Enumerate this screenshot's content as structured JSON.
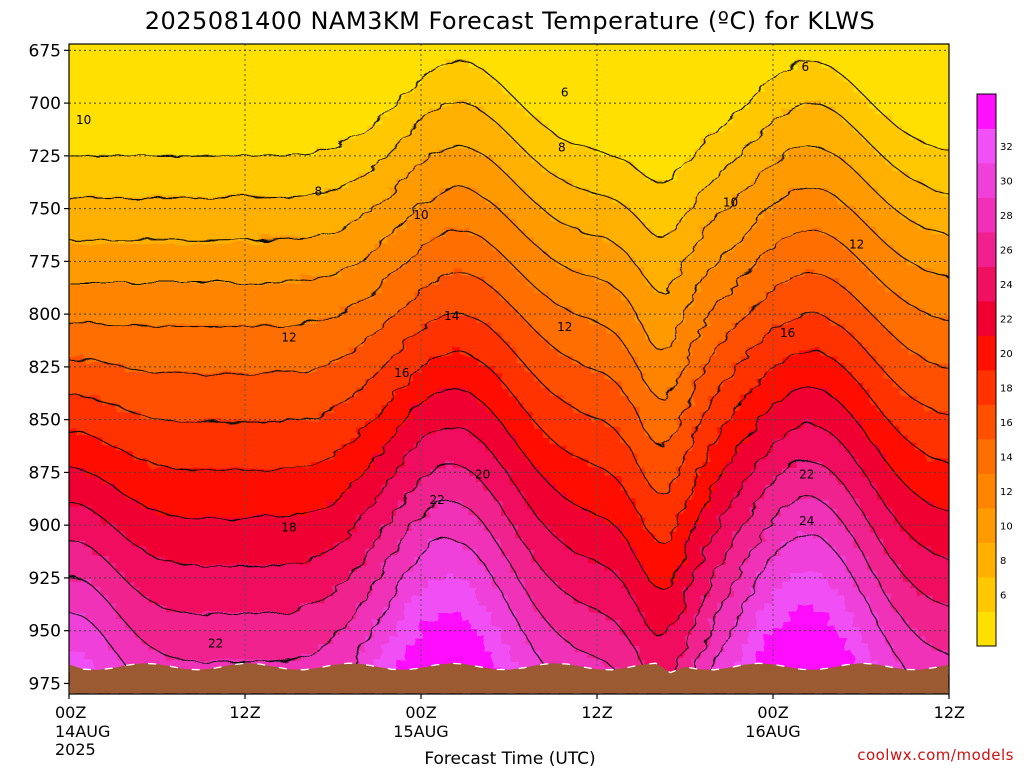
{
  "title": "2025081400 NAM3KM Forecast Temperature (ºC) for KLWS",
  "credit": "coolwx.com/models",
  "chart_data": {
    "type": "contour",
    "title": "2025081400 NAM3KM Forecast Temperature (ºC) for KLWS",
    "xlabel": "Forecast Time (UTC)",
    "ylabel": "",
    "y_ticks": [
      675,
      700,
      725,
      750,
      775,
      800,
      825,
      850,
      875,
      900,
      925,
      950,
      975
    ],
    "ylim": [
      980,
      672
    ],
    "xlim_hours": [
      0,
      60
    ],
    "x_ticks": [
      {
        "hour": 0,
        "label": "00Z",
        "sub": "14AUG",
        "sub2": "2025"
      },
      {
        "hour": 12,
        "label": "12Z",
        "sub": "",
        "sub2": ""
      },
      {
        "hour": 24,
        "label": "00Z",
        "sub": "15AUG",
        "sub2": ""
      },
      {
        "hour": 36,
        "label": "12Z",
        "sub": "",
        "sub2": ""
      },
      {
        "hour": 48,
        "label": "00Z",
        "sub": "16AUG",
        "sub2": ""
      },
      {
        "hour": 60,
        "label": "12Z",
        "sub": "",
        "sub2": ""
      }
    ],
    "grid": true,
    "colorbar": {
      "labels": [
        "6",
        "8",
        "10",
        "12",
        "14",
        "16",
        "18",
        "20",
        "22",
        "24",
        "26",
        "28",
        "30",
        "32"
      ],
      "colors": [
        "#ffe000",
        "#ffc800",
        "#ffb000",
        "#ff9a00",
        "#ff8400",
        "#ff6e00",
        "#ff5000",
        "#ff3200",
        "#ff1000",
        "#f00030",
        "#f01060",
        "#f0208e",
        "#f030b8",
        "#f040da",
        "#f050f5",
        "#ff10ff"
      ]
    },
    "surface_color": "#9c5a32",
    "contour_labels": [
      {
        "value": "6",
        "hour": 33.8,
        "p": 695
      },
      {
        "value": "6",
        "hour": 50.2,
        "p": 683
      },
      {
        "value": "8",
        "hour": 17,
        "p": 742
      },
      {
        "value": "8",
        "hour": 33.6,
        "p": 721
      },
      {
        "value": "10",
        "hour": 1,
        "p": 708
      },
      {
        "value": "10",
        "hour": 24,
        "p": 753
      },
      {
        "value": "10",
        "hour": 45.1,
        "p": 747
      },
      {
        "value": "12",
        "hour": 15,
        "p": 811
      },
      {
        "value": "12",
        "hour": 33.8,
        "p": 806
      },
      {
        "value": "12",
        "hour": 53.7,
        "p": 767
      },
      {
        "value": "14",
        "hour": 26.1,
        "p": 801
      },
      {
        "value": "16",
        "hour": 22.7,
        "p": 828
      },
      {
        "value": "16",
        "hour": 49,
        "p": 809
      },
      {
        "value": "18",
        "hour": 15,
        "p": 901
      },
      {
        "value": "20",
        "hour": 28.2,
        "p": 876
      },
      {
        "value": "22",
        "hour": 25.1,
        "p": 888
      },
      {
        "value": "22",
        "hour": 10,
        "p": 956
      },
      {
        "value": "22",
        "hour": 50.3,
        "p": 876
      },
      {
        "value": "24",
        "hour": 50.3,
        "p": 898
      }
    ]
  }
}
